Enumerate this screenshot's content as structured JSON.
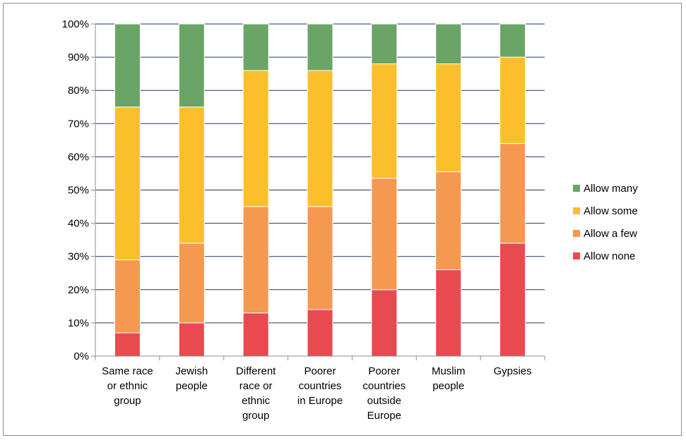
{
  "chart_data": {
    "type": "bar",
    "stacked": true,
    "percent": true,
    "categories": [
      [
        "Same race",
        "or ethnic",
        "group"
      ],
      [
        "Jewish",
        "people"
      ],
      [
        "Different",
        "race or",
        "ethnic",
        "group"
      ],
      [
        "Poorer",
        "countries",
        "in Europe"
      ],
      [
        "Poorer",
        "countries",
        "outside",
        "Europe"
      ],
      [
        "Muslim",
        "people"
      ],
      [
        "Gypsies"
      ]
    ],
    "series": [
      {
        "name": "Allow none",
        "color": "#e84a4f",
        "values": [
          7,
          10,
          13,
          14,
          20,
          26,
          34
        ]
      },
      {
        "name": "Allow a few",
        "color": "#f59850",
        "values": [
          22,
          24,
          32,
          31,
          33.5,
          29.5,
          30
        ]
      },
      {
        "name": "Allow some",
        "color": "#fcbf2c",
        "values": [
          46,
          41,
          41,
          41,
          34.5,
          32.5,
          26
        ]
      },
      {
        "name": "Allow many",
        "color": "#6ba467",
        "values": [
          25,
          25,
          14,
          14,
          12,
          12,
          10
        ]
      }
    ],
    "legend_order": [
      "Allow many",
      "Allow some",
      "Allow a few",
      "Allow none"
    ],
    "legend_position": "right",
    "yticks": [
      "0%",
      "10%",
      "20%",
      "30%",
      "40%",
      "50%",
      "60%",
      "70%",
      "80%",
      "90%",
      "100%"
    ],
    "ylim": [
      0,
      100
    ],
    "grid": true,
    "gridline_color": "#1f3864"
  }
}
